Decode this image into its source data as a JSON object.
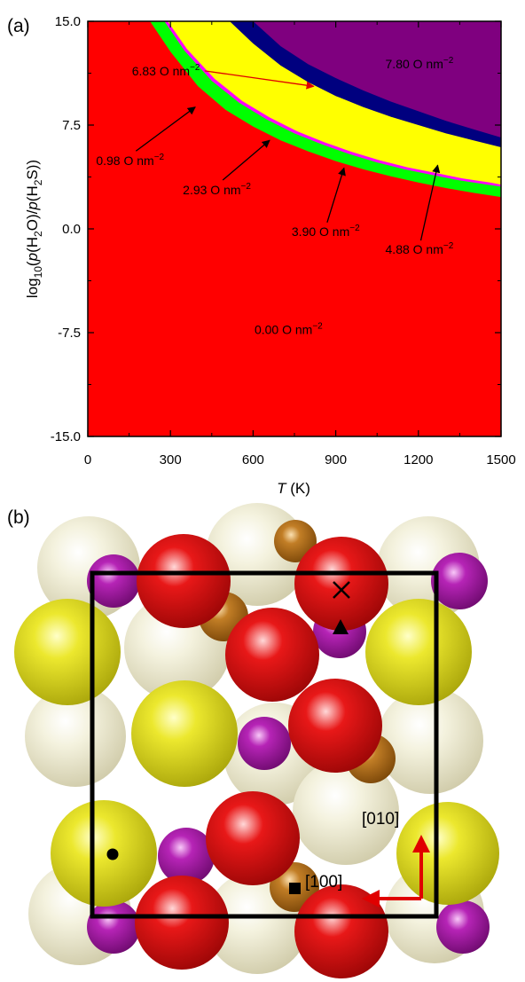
{
  "panel_a": {
    "label": "(a)",
    "chart_data": {
      "type": "heatmap",
      "title": "",
      "xlabel_italic": "T",
      "xlabel_unit": " (K)",
      "ylabel_parts": [
        "log",
        "10",
        "(",
        "p",
        "(H",
        "2",
        "O)/",
        "p",
        "(H",
        "2",
        "S))"
      ],
      "xlim": [
        0,
        1500
      ],
      "ylim": [
        -15.0,
        15.0
      ],
      "x_ticks": [
        0,
        300,
        600,
        900,
        1200,
        1500
      ],
      "x_tick_labels": [
        "0",
        "300",
        "600",
        "900",
        "1200",
        "1500"
      ],
      "y_ticks": [
        15.0,
        7.5,
        0.0,
        -7.5,
        -15.0
      ],
      "y_tick_labels": [
        "15.0",
        "7.5",
        "0.0",
        "-7.5",
        "-15.0"
      ],
      "grid": false,
      "regions": [
        {
          "coverage": "0.00 O nm⁻²",
          "label": "0.00 O nm",
          "sup": "−2",
          "color": "#ff0000",
          "boundary_upper": [
            [
              0,
              15.0
            ],
            [
              1500,
              15.0
            ]
          ]
        },
        {
          "coverage": "0.98 O nm⁻²",
          "label": "0.98 O nm",
          "sup": "−2",
          "color": "#00ff00",
          "boundary_lower": [
            [
              226,
              15.0
            ],
            [
              300,
              12.8
            ],
            [
              400,
              10.3
            ],
            [
              500,
              8.6
            ],
            [
              600,
              7.4
            ],
            [
              700,
              6.4
            ],
            [
              800,
              5.6
            ],
            [
              900,
              4.9
            ],
            [
              1000,
              4.3
            ],
            [
              1100,
              3.8
            ],
            [
              1200,
              3.35
            ],
            [
              1300,
              2.95
            ],
            [
              1400,
              2.6
            ],
            [
              1500,
              2.3
            ]
          ]
        },
        {
          "coverage": "2.93 O nm⁻²",
          "label": "2.93 O nm",
          "sup": "−2",
          "color": "#ff00ff",
          "boundary_lower": [
            [
              278,
              15.0
            ],
            [
              350,
              12.9
            ],
            [
              450,
              10.7
            ],
            [
              550,
              9.1
            ],
            [
              650,
              7.9
            ],
            [
              750,
              6.9
            ],
            [
              850,
              6.1
            ],
            [
              950,
              5.4
            ],
            [
              1050,
              4.8
            ],
            [
              1150,
              4.3
            ],
            [
              1250,
              3.9
            ],
            [
              1350,
              3.5
            ],
            [
              1450,
              3.2
            ],
            [
              1500,
              3.05
            ]
          ]
        },
        {
          "coverage": "3.90 O nm⁻²",
          "label": "3.90 O nm",
          "sup": "−2",
          "color": "#ffff00",
          "boundary_lower": [
            [
              290,
              15.0
            ],
            [
              360,
              13.0
            ],
            [
              460,
              10.85
            ],
            [
              560,
              9.25
            ],
            [
              660,
              8.05
            ],
            [
              760,
              7.05
            ],
            [
              860,
              6.25
            ],
            [
              960,
              5.55
            ],
            [
              1060,
              4.95
            ],
            [
              1160,
              4.45
            ],
            [
              1260,
              4.05
            ],
            [
              1360,
              3.65
            ],
            [
              1460,
              3.35
            ],
            [
              1500,
              3.2
            ]
          ]
        },
        {
          "coverage": "6.83 O nm⁻²",
          "label": "6.83 O nm",
          "sup": "−2",
          "color": "#00007f",
          "boundary_lower": [
            [
              515,
              15.0
            ],
            [
              600,
              13.4
            ],
            [
              700,
              11.8
            ],
            [
              800,
              10.6
            ],
            [
              900,
              9.6
            ],
            [
              1000,
              8.8
            ],
            [
              1100,
              8.1
            ],
            [
              1200,
              7.5
            ],
            [
              1300,
              6.9
            ],
            [
              1400,
              6.4
            ],
            [
              1500,
              5.9
            ]
          ]
        },
        {
          "coverage": "7.80 O nm⁻²",
          "label": "7.80 O nm",
          "sup": "−2",
          "color": "#7f007f",
          "boundary_lower": [
            [
              600,
              15.0
            ],
            [
              700,
              13.2
            ],
            [
              800,
              11.9
            ],
            [
              900,
              10.9
            ],
            [
              1000,
              10.0
            ],
            [
              1100,
              9.2
            ],
            [
              1200,
              8.5
            ],
            [
              1300,
              7.8
            ],
            [
              1400,
              7.2
            ],
            [
              1500,
              6.6
            ]
          ]
        }
      ],
      "annotations": [
        {
          "text": "7.80 O nm",
          "sup": "−2",
          "x": 1080,
          "y": 11.6
        },
        {
          "text": "6.83 O nm",
          "sup": "−2",
          "x": 160,
          "y": 11.1,
          "arrow_to": [
            820,
            10.3
          ],
          "arrow_color": "#ff0000"
        },
        {
          "text": "0.98 O nm",
          "sup": "−2",
          "x": 30,
          "y": 4.6,
          "arrow_to": [
            390,
            8.8
          ],
          "arrow_color": "#000000"
        },
        {
          "text": "2.93 O nm",
          "sup": "−2",
          "x": 345,
          "y": 2.5,
          "arrow_to": [
            660,
            6.4
          ],
          "arrow_color": "#000000"
        },
        {
          "text": "3.90 O nm",
          "sup": "−2",
          "x": 740,
          "y": -0.5,
          "arrow_to": [
            930,
            4.4
          ],
          "arrow_color": "#000000"
        },
        {
          "text": "4.88 O nm",
          "sup": "−2",
          "x": 1080,
          "y": -1.8,
          "arrow_to": [
            1270,
            4.6
          ],
          "arrow_color": "#000000"
        },
        {
          "text": "0.00 O nm",
          "sup": "−2",
          "x": 605,
          "y": -7.6
        }
      ]
    }
  },
  "panel_b": {
    "label": "(b)",
    "direction_labels": {
      "y": "[010]",
      "x": "[100]"
    },
    "atom_colors": {
      "beige": "#ecead0",
      "yellow": "#e8e020",
      "red": "#e01010",
      "purple": "#b01eb0",
      "bronze": "#b8701c"
    },
    "markers": [
      "cross",
      "triangle",
      "dot",
      "square"
    ]
  }
}
